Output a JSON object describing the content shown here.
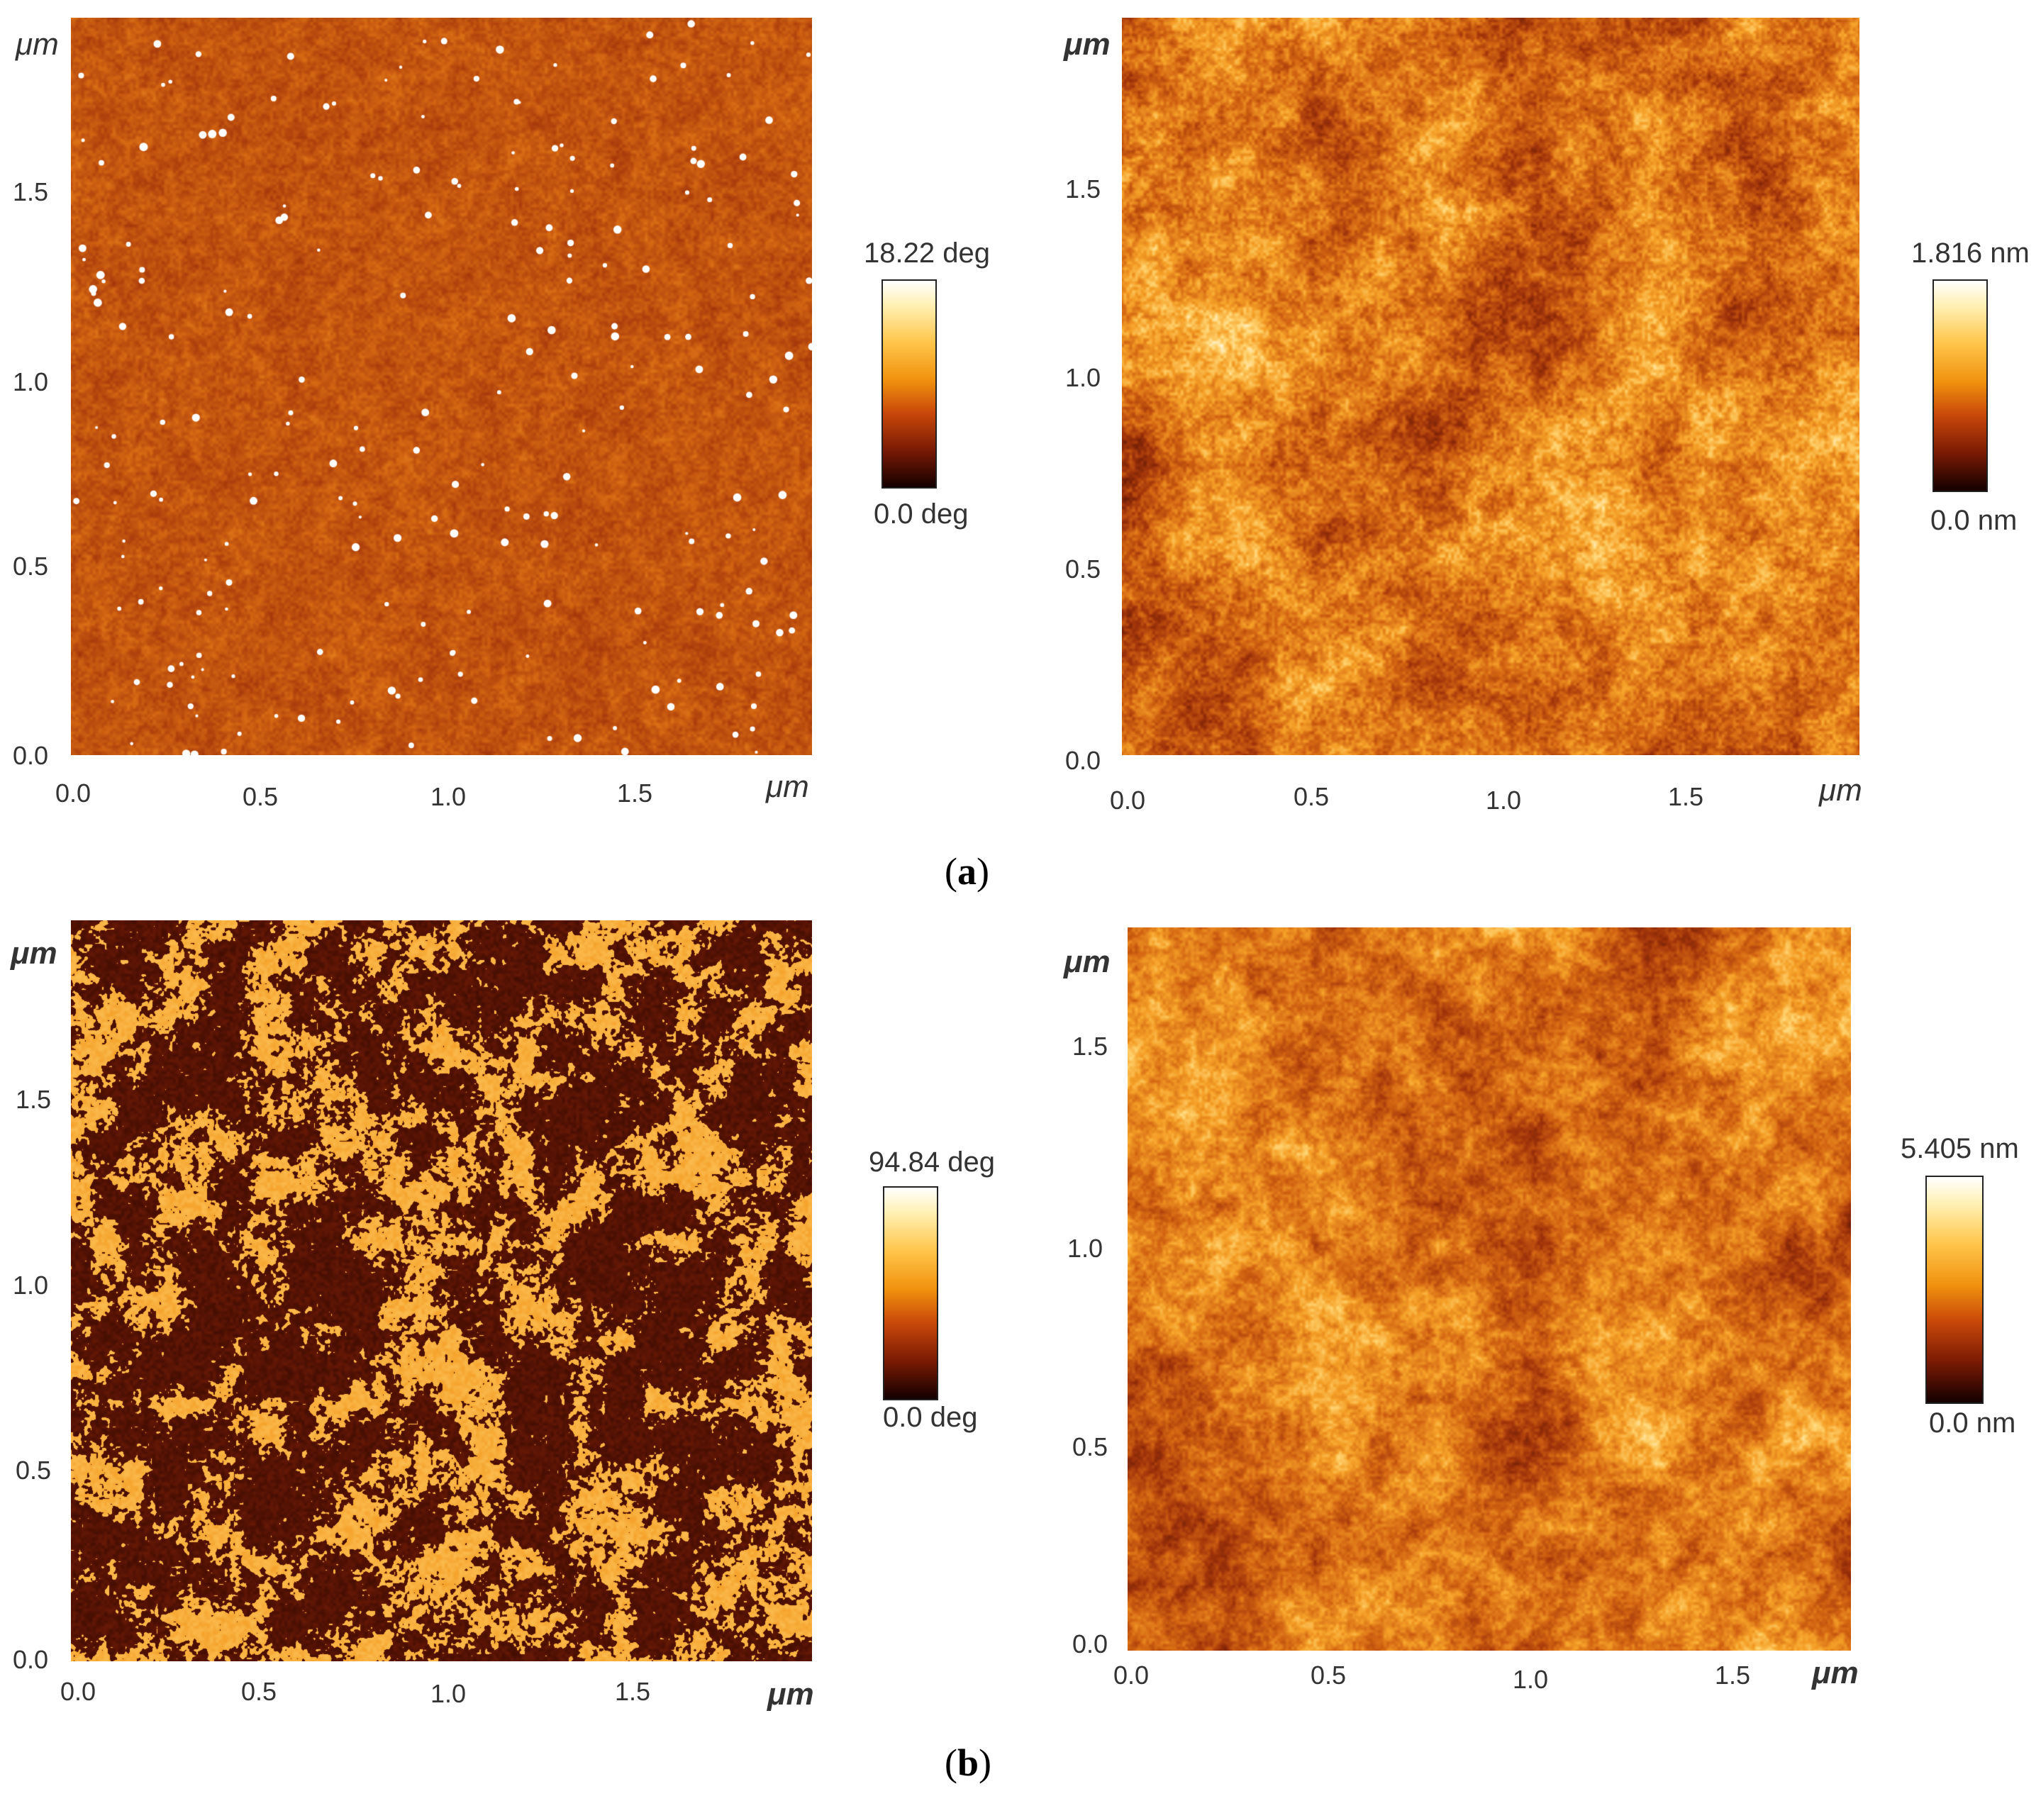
{
  "panels": [
    {
      "id": "a-phase",
      "unit": "μm",
      "y_ticks": [
        "1.5",
        "1.0",
        "0.5",
        "0.0"
      ],
      "x_ticks": [
        "0.0",
        "0.5",
        "1.0",
        "1.5"
      ],
      "colorbar": {
        "max": "18.22 deg",
        "min": "0.0 deg"
      },
      "image": "uniform red-brown phase map with sparse bright white-yellow speckles"
    },
    {
      "id": "a-height",
      "unit": "μm",
      "y_ticks": [
        "1.5",
        "1.0",
        "0.5",
        "0.0"
      ],
      "x_ticks": [
        "0.0",
        "0.5",
        "1.0",
        "1.5"
      ],
      "colorbar": {
        "max": "1.816 nm",
        "min": "0.0 nm"
      },
      "image": "mottled dark brown to orange height map with bright central region"
    },
    {
      "id": "b-phase",
      "unit": "μm",
      "y_ticks": [
        "1.5",
        "1.0",
        "0.5",
        "0.0"
      ],
      "x_ticks": [
        "0.0",
        "0.5",
        "1.0",
        "1.5"
      ],
      "colorbar": {
        "max": "94.84 deg",
        "min": "0.0 deg"
      },
      "image": "high-contrast phase map with bright orange-yellow islands on dark brown"
    },
    {
      "id": "b-height",
      "unit": "μm",
      "y_ticks": [
        "1.5",
        "1.0",
        "0.5",
        "0.0"
      ],
      "x_ticks": [
        "0.0",
        "0.5",
        "1.0",
        "1.5"
      ],
      "colorbar": {
        "max": "5.405 nm",
        "min": "0.0 nm"
      },
      "image": "orange-brown height map with bright patches lower left"
    }
  ],
  "captions": {
    "a": "a",
    "b": "b",
    "open": "(",
    "close": ")"
  },
  "colors": {
    "dark": "#2a0500",
    "mid": "#a3340c",
    "bright": "#ffd76a",
    "white": "#ffffff"
  }
}
